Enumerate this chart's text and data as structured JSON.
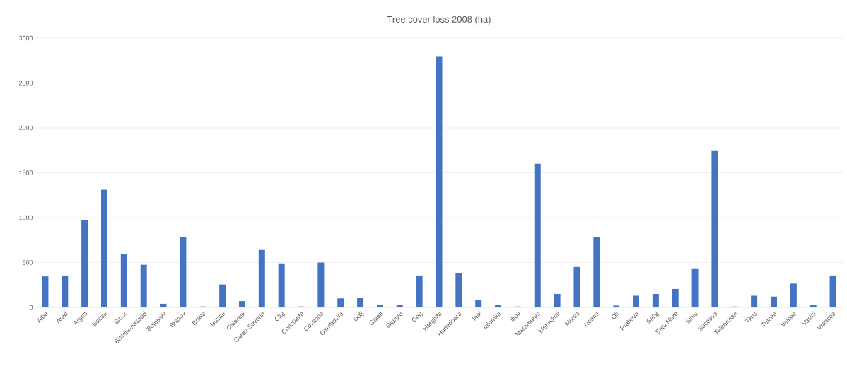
{
  "chart_data": {
    "type": "bar",
    "title": "Tree cover loss 2008 (ha)",
    "categories": [
      "Alba",
      "Arad",
      "Arges",
      "Bacau",
      "Bihor",
      "Bistrita-nasaud",
      "Botosani",
      "Brasov",
      "Braila",
      "Buzau",
      "Calarasi",
      "Caras-Severin",
      "Cluj",
      "Constanta",
      "Covasna",
      "Dambovita",
      "Dolj",
      "Galati",
      "Giurgiu",
      "Gorj",
      "Harghita",
      "Hunedoara",
      "Iasi",
      "Ialomita",
      "Ilfov",
      "Maramures",
      "Mehedinti",
      "Mures",
      "Neamt",
      "Olt",
      "Prahova",
      "Salaj",
      "Satu Mare",
      "Sibiu",
      "Suceava",
      "Teleorman",
      "Tims",
      "Tulcea",
      "Valcea",
      "Vaslui",
      "Vrancea"
    ],
    "values": [
      345,
      355,
      970,
      1310,
      590,
      475,
      40,
      780,
      10,
      255,
      70,
      640,
      490,
      10,
      500,
      100,
      110,
      30,
      30,
      355,
      2800,
      385,
      80,
      30,
      10,
      1600,
      150,
      450,
      780,
      20,
      130,
      150,
      205,
      435,
      1750,
      10,
      130,
      120,
      265,
      30,
      355
    ],
    "color": "#4472c4",
    "ylim": [
      0,
      3000
    ],
    "yticks": [
      0,
      500,
      1000,
      1500,
      2000,
      2500,
      3000
    ],
    "grid": "y"
  }
}
